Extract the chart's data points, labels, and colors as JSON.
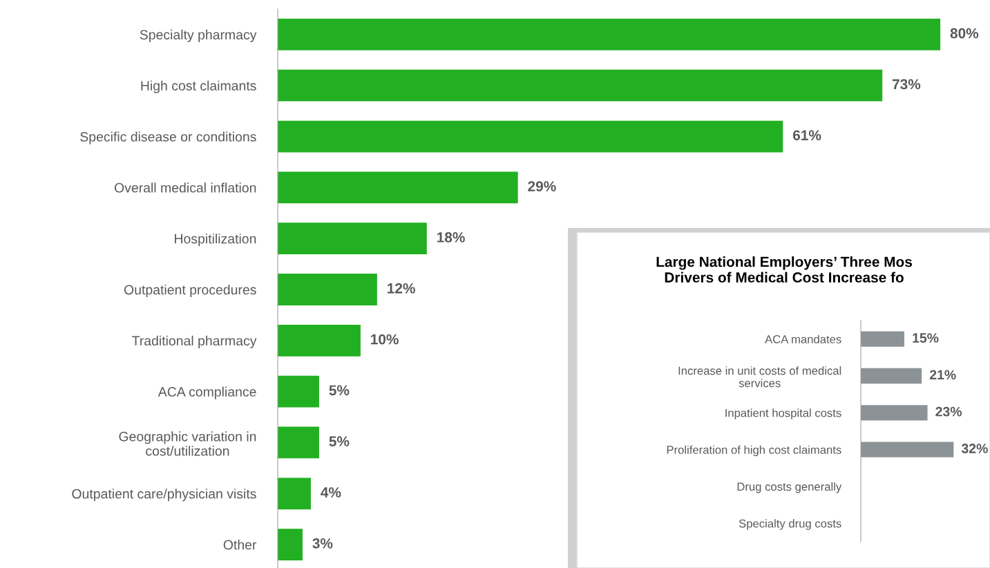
{
  "chart_data": [
    {
      "type": "bar",
      "orientation": "horizontal",
      "categories": [
        "Specialty pharmacy",
        "High cost claimants",
        "Specific disease or conditions",
        "Overall medical inflation",
        "Hospitilization",
        "Outpatient procedures",
        "Traditional pharmacy",
        "ACA compliance",
        "Geographic variation in\ncost/utilization",
        "Outpatient care/physician visits",
        "Other"
      ],
      "values": [
        80,
        73,
        61,
        29,
        18,
        12,
        10,
        5,
        5,
        4,
        3
      ],
      "value_labels": [
        "80%",
        "73%",
        "61%",
        "29%",
        "18%",
        "12%",
        "10%",
        "5%",
        "5%",
        "4%",
        "3%"
      ],
      "color": "#22b022",
      "tick_labels": "y"
    },
    {
      "type": "bar",
      "orientation": "horizontal",
      "title": "Large National Employers’ Three Mos\nDrivers of Medical Cost Increase fo",
      "categories": [
        "ACA mandates",
        "Increase in unit costs of medical\nservices",
        "Inpatient hospital costs",
        "Proliferation of high cost claimants",
        "Drug costs generally",
        "Specialty drug costs"
      ],
      "values": [
        15,
        21,
        23,
        32,
        null,
        null
      ],
      "value_labels": [
        "15%",
        "21%",
        "23%",
        "32%",
        null,
        null
      ],
      "color": "#8c9396",
      "tick_labels": "y"
    }
  ]
}
